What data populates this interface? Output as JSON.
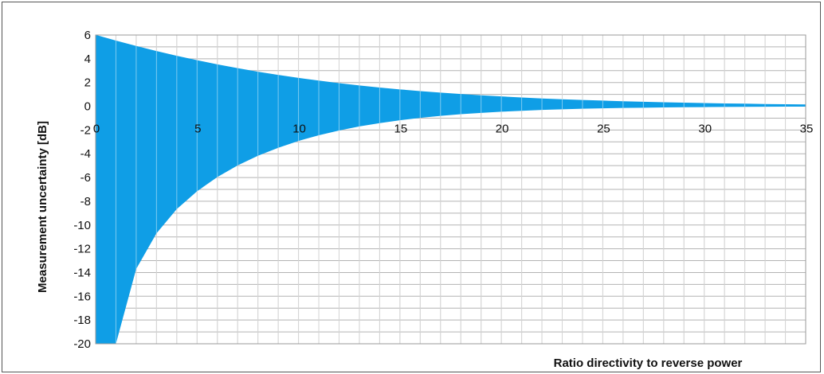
{
  "chart_data": {
    "type": "area",
    "title": "",
    "xlabel": "Ratio directivity to reverse power",
    "ylabel": "Measurement uncertainty [dB]",
    "xlim": [
      0,
      35
    ],
    "ylim": [
      -20,
      6
    ],
    "x_ticks": [
      "0",
      "5",
      "10",
      "15",
      "20",
      "25",
      "30",
      "35"
    ],
    "y_ticks": [
      "6",
      "4",
      "2",
      "0",
      "-2",
      "-4",
      "-6",
      "-8",
      "-10",
      "-12",
      "-14",
      "-16",
      "-18",
      "-20"
    ],
    "x_minor_step": 1,
    "y_minor_step": 1,
    "grid": true,
    "legend": "none",
    "band": {
      "color": "#0f9ee6",
      "x": [
        0,
        1,
        2,
        3,
        4,
        5,
        6,
        7,
        8,
        9,
        10,
        11,
        12,
        13,
        14,
        15,
        16,
        17,
        18,
        19,
        20,
        21,
        22,
        23,
        24,
        25,
        26,
        27,
        28,
        29,
        30,
        31,
        32,
        33,
        34,
        35
      ],
      "upper": [
        6.02,
        5.53,
        5.08,
        4.65,
        4.25,
        3.88,
        3.53,
        3.21,
        2.91,
        2.64,
        2.39,
        2.16,
        1.95,
        1.75,
        1.58,
        1.42,
        1.28,
        1.15,
        1.03,
        0.92,
        0.83,
        0.74,
        0.66,
        0.59,
        0.53,
        0.48,
        0.42,
        0.38,
        0.34,
        0.3,
        0.27,
        0.24,
        0.22,
        0.19,
        0.17,
        0.15
      ],
      "lower": [
        -20,
        -20,
        -13.7,
        -10.7,
        -8.66,
        -7.16,
        -5.96,
        -4.98,
        -4.17,
        -3.5,
        -2.92,
        -2.44,
        -2.04,
        -1.7,
        -1.42,
        -1.18,
        -0.98,
        -0.81,
        -0.67,
        -0.56,
        -0.46,
        -0.38,
        -0.31,
        -0.26,
        -0.21,
        -0.17,
        -0.14,
        -0.12,
        -0.1,
        -0.08,
        -0.07,
        -0.06,
        -0.05,
        -0.04,
        -0.03,
        -0.03
      ]
    }
  }
}
